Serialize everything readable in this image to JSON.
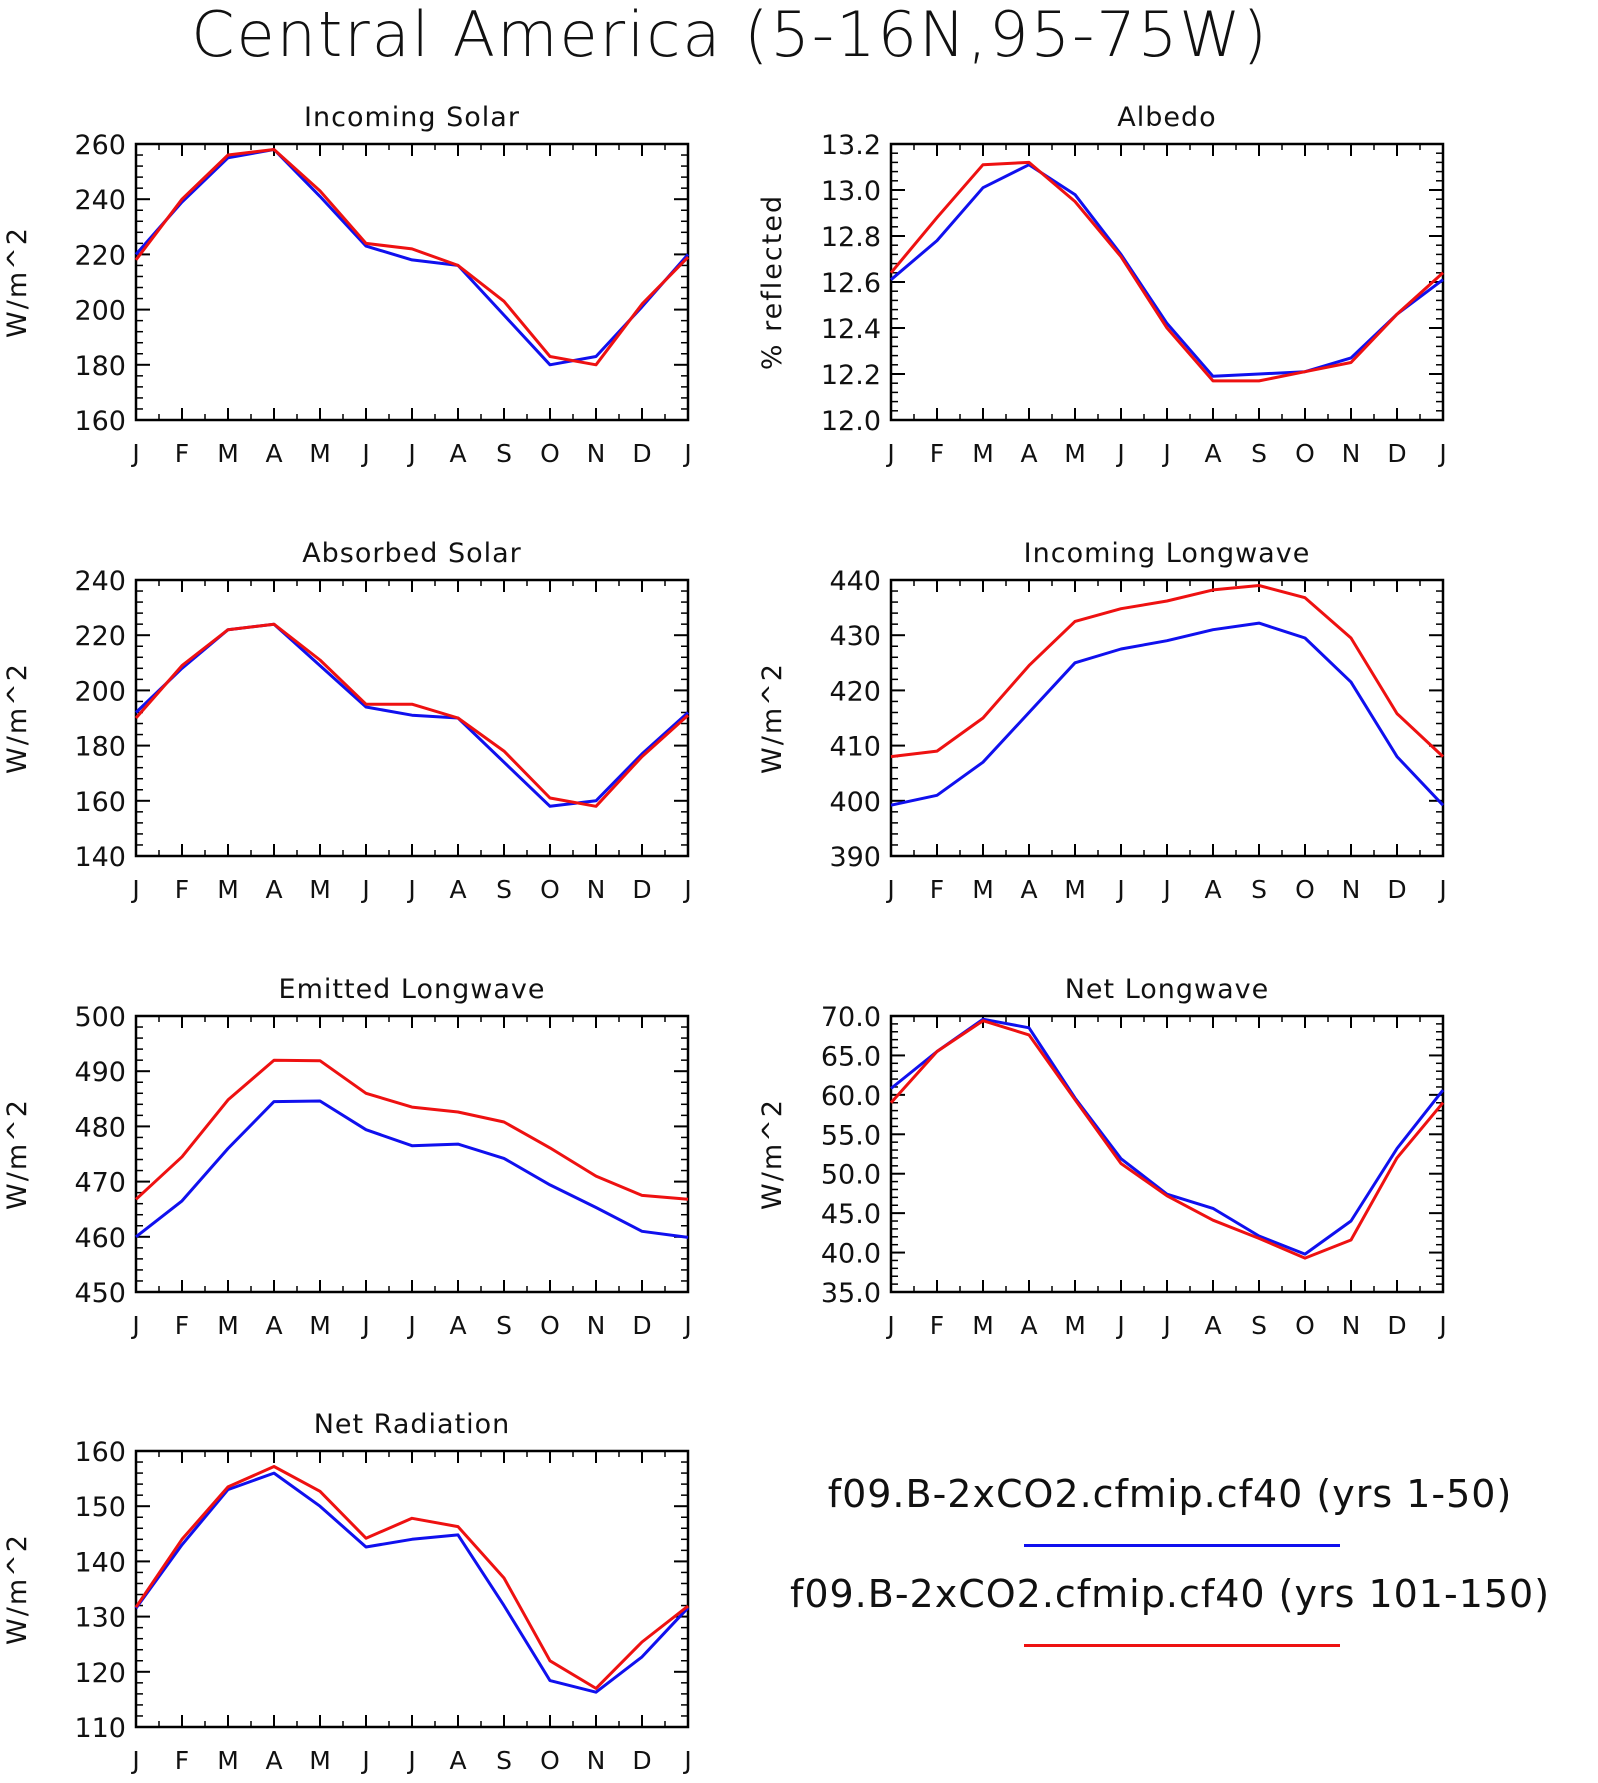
{
  "title": "Central America (5-16N,95-75W)",
  "colors": {
    "series1": "#1010ee",
    "series2": "#ee1111",
    "axis": "#000000"
  },
  "legend": [
    {
      "label": "f09.B-2xCO2.cfmip.cf40 (yrs 1-50)",
      "color": "#1010ee"
    },
    {
      "label": "f09.B-2xCO2.cfmip.cf40 (yrs 101-150)",
      "color": "#ee1111"
    }
  ],
  "chart_data": [
    {
      "type": "line",
      "title": "Incoming Solar",
      "ylabel": "W/m^2",
      "categories": [
        "J",
        "F",
        "M",
        "A",
        "M",
        "J",
        "J",
        "A",
        "S",
        "O",
        "N",
        "D",
        "J"
      ],
      "ylim": [
        160,
        260
      ],
      "yticks": [
        160,
        180,
        200,
        220,
        240,
        260
      ],
      "yticklabels": [
        "160",
        "180",
        "200",
        "220",
        "240",
        "260"
      ],
      "series": [
        {
          "values": [
            220,
            239,
            255,
            258,
            241,
            223,
            218,
            216,
            198,
            180,
            183,
            201,
            220
          ]
        },
        {
          "values": [
            218,
            240,
            256,
            258,
            243,
            224,
            222,
            216,
            203,
            183,
            180,
            202,
            219
          ]
        }
      ]
    },
    {
      "type": "line",
      "title": "Albedo",
      "ylabel": "% reflected",
      "categories": [
        "J",
        "F",
        "M",
        "A",
        "M",
        "J",
        "J",
        "A",
        "S",
        "O",
        "N",
        "D",
        "J"
      ],
      "ylim": [
        12.0,
        13.2
      ],
      "yticks": [
        12.0,
        12.2,
        12.4,
        12.6,
        12.8,
        13.0,
        13.2
      ],
      "yticklabels": [
        "12.0",
        "12.2",
        "12.4",
        "12.6",
        "12.8",
        "13.0",
        "13.2"
      ],
      "series": [
        {
          "values": [
            12.61,
            12.78,
            13.01,
            13.11,
            12.98,
            12.72,
            12.42,
            12.19,
            12.2,
            12.21,
            12.27,
            12.46,
            12.61
          ]
        },
        {
          "values": [
            12.64,
            12.88,
            13.11,
            13.12,
            12.95,
            12.71,
            12.4,
            12.17,
            12.17,
            12.21,
            12.25,
            12.46,
            12.64
          ]
        }
      ]
    },
    {
      "type": "line",
      "title": "Absorbed Solar",
      "ylabel": "W/m^2",
      "categories": [
        "J",
        "F",
        "M",
        "A",
        "M",
        "J",
        "J",
        "A",
        "S",
        "O",
        "N",
        "D",
        "J"
      ],
      "ylim": [
        140,
        240
      ],
      "yticks": [
        140,
        160,
        180,
        200,
        220,
        240
      ],
      "yticklabels": [
        "140",
        "160",
        "180",
        "200",
        "220",
        "240"
      ],
      "series": [
        {
          "values": [
            192,
            208,
            222,
            224,
            209,
            194,
            191,
            190,
            174,
            158,
            160,
            177,
            192
          ]
        },
        {
          "values": [
            190,
            209,
            222,
            224,
            211,
            195,
            195,
            190,
            178,
            161,
            158,
            176,
            191
          ]
        }
      ]
    },
    {
      "type": "line",
      "title": "Incoming Longwave",
      "ylabel": "W/m^2",
      "categories": [
        "J",
        "F",
        "M",
        "A",
        "M",
        "J",
        "J",
        "A",
        "S",
        "O",
        "N",
        "D",
        "J"
      ],
      "ylim": [
        390,
        440
      ],
      "yticks": [
        390,
        400,
        410,
        420,
        430,
        440
      ],
      "yticklabels": [
        "390",
        "400",
        "410",
        "420",
        "430",
        "440"
      ],
      "series": [
        {
          "values": [
            399.2,
            401.0,
            407.0,
            416.0,
            425.0,
            427.5,
            429.0,
            431.0,
            432.2,
            429.5,
            421.5,
            408.0,
            399.2
          ]
        },
        {
          "values": [
            408.0,
            409.0,
            415.0,
            424.5,
            432.5,
            434.8,
            436.2,
            438.2,
            439.0,
            436.8,
            429.5,
            415.8,
            408.0
          ]
        }
      ]
    },
    {
      "type": "line",
      "title": "Emitted Longwave",
      "ylabel": "W/m^2",
      "categories": [
        "J",
        "F",
        "M",
        "A",
        "M",
        "J",
        "J",
        "A",
        "S",
        "O",
        "N",
        "D",
        "J"
      ],
      "ylim": [
        450,
        500
      ],
      "yticks": [
        450,
        460,
        470,
        480,
        490,
        500
      ],
      "yticklabels": [
        "450",
        "460",
        "470",
        "480",
        "490",
        "500"
      ],
      "series": [
        {
          "values": [
            460.0,
            466.5,
            476.0,
            484.5,
            484.6,
            479.4,
            476.5,
            476.8,
            474.2,
            469.4,
            465.3,
            461.0,
            459.9
          ]
        },
        {
          "values": [
            466.8,
            474.5,
            484.8,
            492.0,
            491.9,
            486.0,
            483.5,
            482.6,
            480.8,
            476.1,
            471.0,
            467.5,
            466.8
          ]
        }
      ]
    },
    {
      "type": "line",
      "title": "Net Longwave",
      "ylabel": "W/m^2",
      "categories": [
        "J",
        "F",
        "M",
        "A",
        "M",
        "J",
        "J",
        "A",
        "S",
        "O",
        "N",
        "D",
        "J"
      ],
      "ylim": [
        35,
        70
      ],
      "yticks": [
        35,
        40,
        45,
        50,
        55,
        60,
        65,
        70
      ],
      "yticklabels": [
        "35.0",
        "40.0",
        "45.0",
        "50.0",
        "55.0",
        "60.0",
        "65.0",
        "70.0"
      ],
      "series": [
        {
          "values": [
            60.8,
            65.5,
            69.6,
            68.5,
            59.6,
            51.9,
            47.4,
            45.6,
            42.1,
            39.8,
            44.0,
            53.2,
            60.6
          ]
        },
        {
          "values": [
            59.0,
            65.5,
            69.4,
            67.6,
            59.4,
            51.3,
            47.2,
            44.1,
            41.8,
            39.3,
            41.6,
            52.0,
            59.0
          ]
        }
      ]
    },
    {
      "type": "line",
      "title": "Net Radiation",
      "ylabel": "W/m^2",
      "categories": [
        "J",
        "F",
        "M",
        "A",
        "M",
        "J",
        "J",
        "A",
        "S",
        "O",
        "N",
        "D",
        "J"
      ],
      "ylim": [
        110,
        160
      ],
      "yticks": [
        110,
        120,
        130,
        140,
        150,
        160
      ],
      "yticklabels": [
        "110",
        "120",
        "130",
        "140",
        "150",
        "160"
      ],
      "series": [
        {
          "values": [
            131.5,
            143.0,
            153.0,
            156.0,
            150.0,
            142.6,
            144.0,
            144.8,
            132.0,
            118.4,
            116.3,
            122.7,
            131.6
          ]
        },
        {
          "values": [
            131.7,
            144.0,
            153.5,
            157.2,
            152.7,
            144.2,
            147.8,
            146.3,
            137.0,
            122.0,
            117.0,
            125.4,
            131.9
          ]
        }
      ]
    }
  ]
}
